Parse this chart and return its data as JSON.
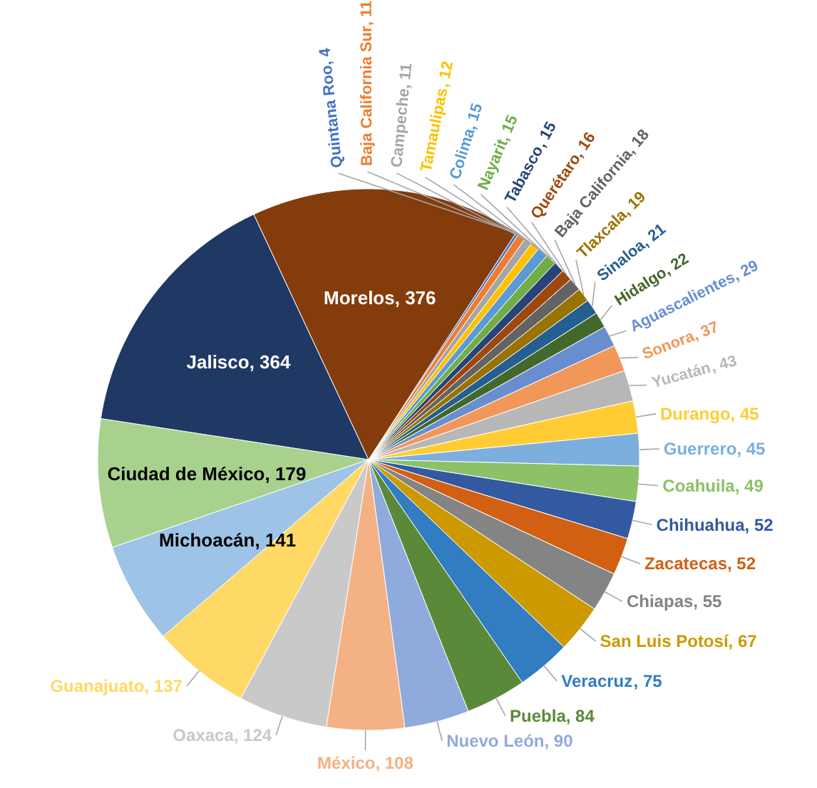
{
  "chart_data": {
    "type": "pie",
    "categories": [
      "Quintana Roo",
      "Baja California Sur",
      "Campeche",
      "Tamaulipas",
      "Colima",
      "Nayarit",
      "Tabasco",
      "Querétaro",
      "Baja California",
      "Tlaxcala",
      "Sinaloa",
      "Hidalgo",
      "Aguascalientes",
      "Sonora",
      "Yucatán",
      "Durango",
      "Guerrero",
      "Coahuila",
      "Chihuahua",
      "Zacatecas",
      "Chiapas",
      "San Luis Potosí",
      "Veracruz",
      "Puebla",
      "Nuevo León",
      "México",
      "Oaxaca",
      "Guanajuato",
      "Michoacán",
      "Ciudad de México",
      "Jalisco",
      "Morelos"
    ],
    "values": [
      4,
      11,
      11,
      12,
      15,
      15,
      15,
      16,
      18,
      19,
      21,
      22,
      29,
      37,
      43,
      45,
      45,
      49,
      52,
      52,
      55,
      67,
      75,
      84,
      90,
      108,
      124,
      137,
      141,
      179,
      364,
      376
    ],
    "value_labels": [
      ", 4",
      ", 11",
      ", 11",
      ", 12",
      ", 15",
      ", 15",
      ", 15",
      ", 16",
      ", 18",
      ", 19",
      ", 21",
      ", 22",
      ", 29",
      ", 37",
      ", 43",
      ", 45",
      ", 45",
      ", 49",
      ", 52",
      ", 52",
      ", 55",
      ", 67",
      ", 75",
      ", 84",
      ", 90",
      ", 108",
      ", 124",
      ", 137",
      ", 141",
      ", 179",
      ", 364",
      ", 376"
    ],
    "colors": [
      "#4472c4",
      "#ed7d31",
      "#a5a5a5",
      "#ffc000",
      "#5b9bd5",
      "#70ad47",
      "#264478",
      "#9e480e",
      "#636363",
      "#997300",
      "#255e91",
      "#43682b",
      "#698ed0",
      "#f1975a",
      "#b7b7b7",
      "#ffcd33",
      "#7cafdd",
      "#8cc168",
      "#335aa1",
      "#d26012",
      "#848484",
      "#cc9a00",
      "#327dc2",
      "#5a8a39",
      "#8faadc",
      "#f4b183",
      "#c9c9c9",
      "#ffd966",
      "#9dc3e6",
      "#a9d18e",
      "#203864",
      "#843c0c"
    ]
  }
}
